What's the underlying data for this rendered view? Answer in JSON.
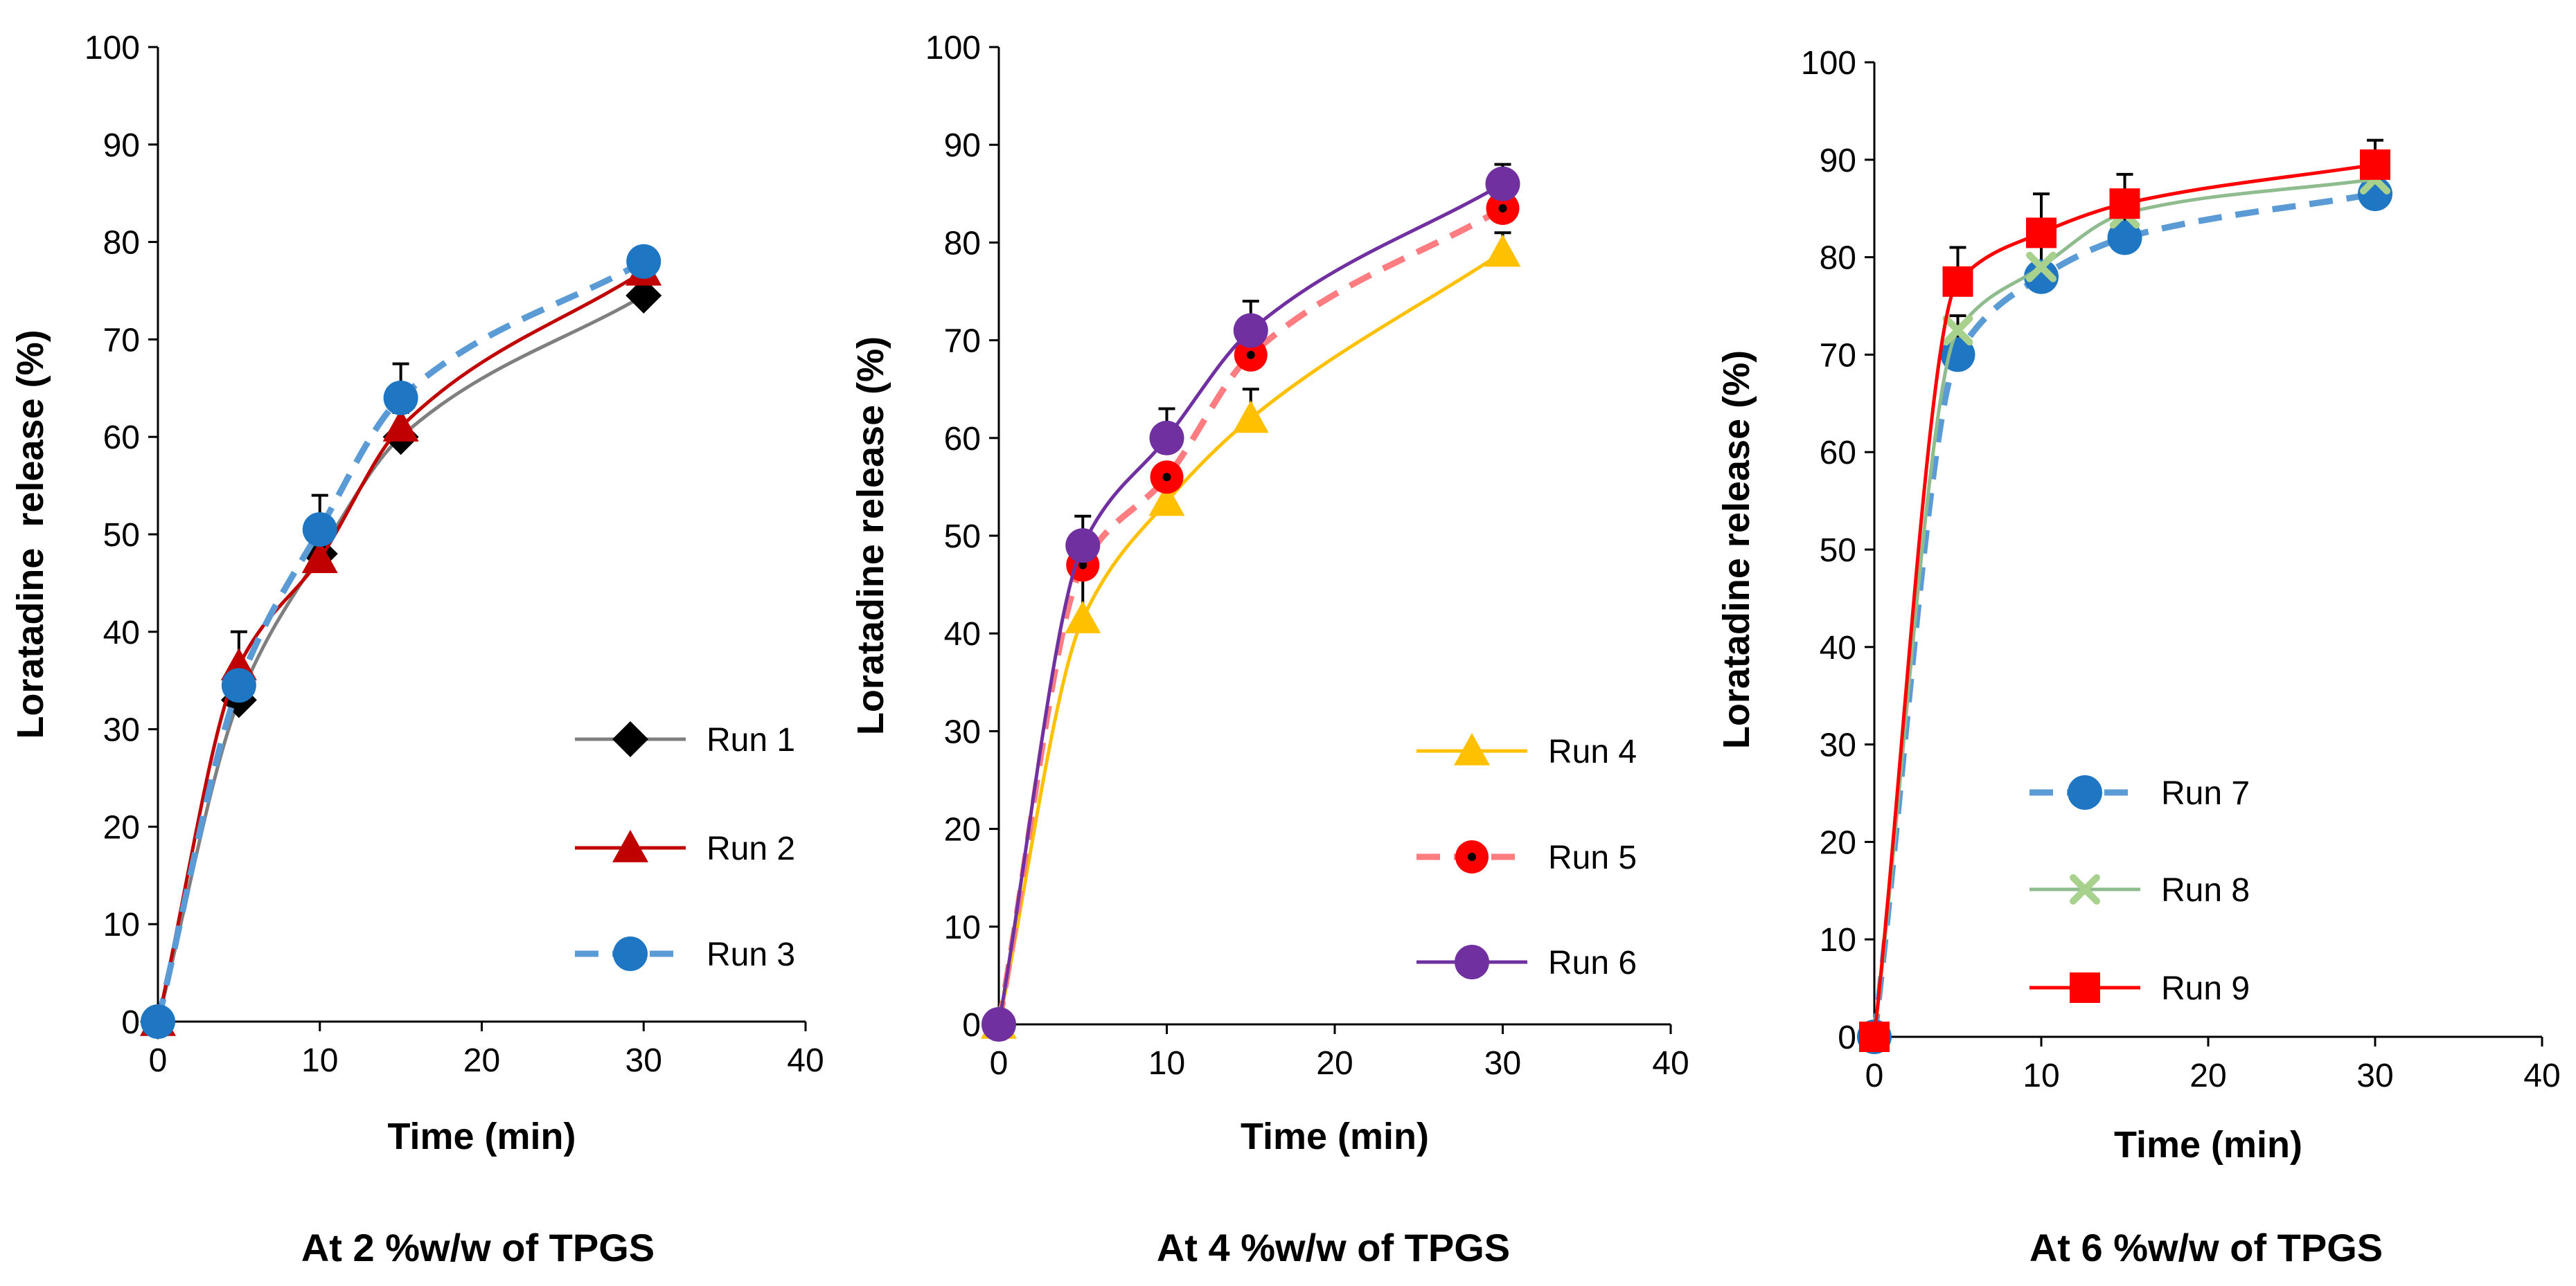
{
  "chart_data": [
    {
      "type": "line",
      "caption": "At 2 %w/w of TPGS",
      "xlabel": "Time (min)",
      "ylabel": "Loratadine  release (%)",
      "xlim": [
        0,
        40
      ],
      "ylim": [
        0,
        100
      ],
      "xticks": [
        0,
        10,
        20,
        30,
        40
      ],
      "yticks": [
        0,
        10,
        20,
        30,
        40,
        50,
        60,
        70,
        80,
        90,
        100
      ],
      "grid": false,
      "legend": "bottom-right",
      "x": [
        0,
        5,
        10,
        15,
        30
      ],
      "series": [
        {
          "name": "Run 1",
          "values": [
            0,
            33,
            48,
            60,
            74.5
          ],
          "error": [
            0,
            0,
            0,
            2.5,
            0
          ],
          "color": "#000000",
          "line_color": "#7f7f7f",
          "marker": "diamond",
          "dash": "solid"
        },
        {
          "name": "Run 2",
          "values": [
            0,
            36.5,
            47.5,
            61,
            77
          ],
          "error": [
            0,
            3.5,
            2.5,
            0,
            0
          ],
          "color": "#c00000",
          "line_color": "#c00000",
          "marker": "triangle",
          "dash": "solid"
        },
        {
          "name": "Run 3",
          "values": [
            0,
            34.5,
            50.5,
            64,
            78
          ],
          "error": [
            0,
            0,
            3.5,
            3.5,
            0
          ],
          "color": "#1f77c4",
          "line_color": "#5b9bd5",
          "marker": "circle",
          "dash": "dashed"
        }
      ]
    },
    {
      "type": "line",
      "caption": "At 4 %w/w of TPGS",
      "xlabel": "Time (min)",
      "ylabel": "Loratadine release (%)",
      "xlim": [
        0,
        40
      ],
      "ylim": [
        0,
        100
      ],
      "xticks": [
        0,
        10,
        20,
        30,
        40
      ],
      "yticks": [
        0,
        10,
        20,
        30,
        40,
        50,
        60,
        70,
        80,
        90,
        100
      ],
      "grid": false,
      "legend": "bottom-right",
      "x": [
        0,
        5,
        10,
        15,
        30
      ],
      "series": [
        {
          "name": "Run 4",
          "values": [
            0,
            41.5,
            53.5,
            62,
            79
          ],
          "error": [
            0,
            5,
            3.5,
            3,
            2
          ],
          "color": "#ffc000",
          "line_color": "#ffc000",
          "marker": "triangle",
          "dash": "solid"
        },
        {
          "name": "Run 5",
          "values": [
            0,
            47,
            56,
            68.5,
            83.5
          ],
          "error": [
            0,
            0,
            0,
            3,
            0
          ],
          "color": "#ff0000",
          "line_color": "#ff7c80",
          "marker": "circle-dot",
          "dash": "dashed"
        },
        {
          "name": "Run 6",
          "values": [
            0,
            49,
            60,
            71,
            86
          ],
          "error": [
            0,
            3,
            3,
            3,
            2
          ],
          "color": "#7030a0",
          "line_color": "#7030a0",
          "marker": "circle",
          "dash": "solid"
        }
      ]
    },
    {
      "type": "line",
      "caption": "At 6 %w/w of TPGS",
      "xlabel": "Time (min)",
      "ylabel": "Loratadine release (%)",
      "xlim": [
        0,
        40
      ],
      "ylim": [
        0,
        100
      ],
      "xticks": [
        0,
        10,
        20,
        30,
        40
      ],
      "yticks": [
        0,
        10,
        20,
        30,
        40,
        50,
        60,
        70,
        80,
        90,
        100
      ],
      "grid": false,
      "legend": "bottom-right",
      "x": [
        0,
        5,
        10,
        15,
        30
      ],
      "series": [
        {
          "name": "Run 7",
          "values": [
            0,
            70,
            78,
            82,
            86.5
          ],
          "error": [
            0,
            4,
            3.5,
            4,
            4
          ],
          "color": "#1f77c4",
          "line_color": "#5b9bd5",
          "marker": "circle",
          "dash": "dashed"
        },
        {
          "name": "Run 8",
          "values": [
            0,
            72.5,
            79,
            84.5,
            88
          ],
          "error": [
            0,
            0,
            0,
            0,
            0
          ],
          "color": "#a9d18e",
          "line_color": "#8fbc8f",
          "marker": "x",
          "dash": "solid"
        },
        {
          "name": "Run 9",
          "values": [
            0,
            77.5,
            82.5,
            85.5,
            89.5
          ],
          "error": [
            0,
            3.5,
            4,
            3,
            2.5
          ],
          "color": "#ff0000",
          "line_color": "#ff0000",
          "marker": "square",
          "dash": "solid"
        }
      ]
    }
  ]
}
